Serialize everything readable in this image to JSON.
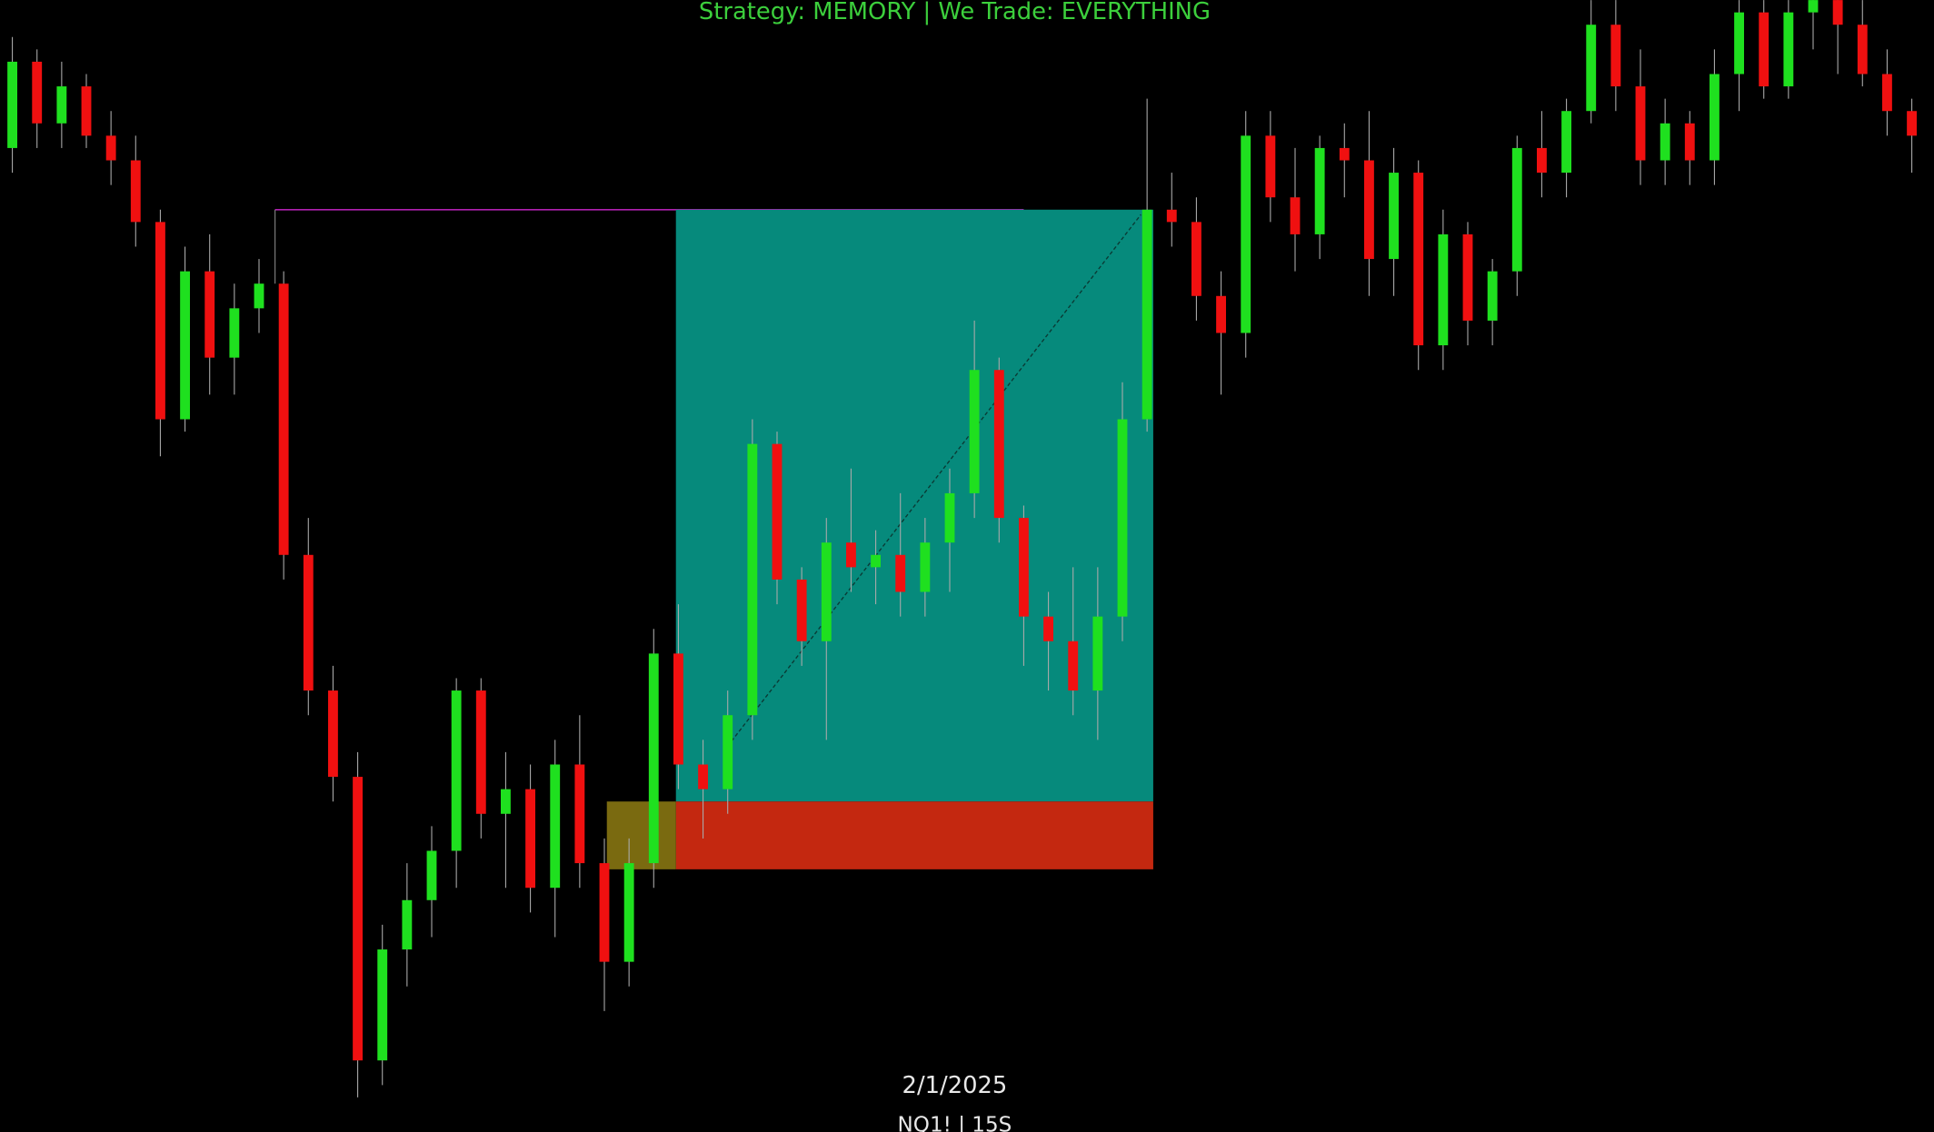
{
  "chart_data": {
    "type": "candlestick",
    "title": "Strategy: MEMORY  | We Trade: EVERYTHING",
    "date_label": "2/1/2025",
    "symbol": "NQ1! | 15S",
    "ylim": [
      0,
      92
    ],
    "up_color": "#1fe01f",
    "down_color": "#f01010",
    "open": [
      80,
      87,
      82,
      85,
      81,
      79,
      74,
      58,
      70,
      63,
      67,
      69,
      47,
      36,
      29,
      6,
      15,
      19,
      23,
      36,
      26,
      28,
      20,
      30,
      22,
      14,
      22,
      39,
      30,
      28,
      34,
      56,
      45,
      40,
      48,
      46,
      47,
      44,
      48,
      52,
      62,
      50,
      42,
      40,
      36,
      42,
      58,
      75,
      74,
      68,
      65,
      81,
      76,
      73,
      80,
      79,
      71,
      78,
      64,
      73,
      66,
      70,
      80,
      78,
      83,
      90,
      85,
      79,
      82,
      79,
      86,
      91,
      85,
      91,
      92,
      90,
      86,
      83
    ],
    "high": [
      89,
      88,
      87,
      86,
      83,
      81,
      75,
      72,
      73,
      69,
      71,
      70,
      50,
      38,
      31,
      17,
      22,
      25,
      37,
      37,
      31,
      30,
      32,
      34,
      24,
      24,
      41,
      43,
      32,
      36,
      58,
      57,
      46,
      50,
      54,
      49,
      52,
      50,
      54,
      66,
      63,
      51,
      44,
      46,
      46,
      61,
      84,
      78,
      76,
      70,
      83,
      83,
      80,
      81,
      82,
      83,
      80,
      79,
      75,
      74,
      71,
      81,
      83,
      84,
      92,
      92,
      88,
      84,
      83,
      88,
      92,
      92,
      92,
      92,
      92,
      92,
      88,
      84
    ],
    "low": [
      78,
      80,
      80,
      80,
      77,
      72,
      55,
      57,
      60,
      60,
      65,
      45,
      34,
      27,
      3,
      4,
      12,
      16,
      20,
      24,
      20,
      18,
      16,
      20,
      10,
      12,
      20,
      28,
      24,
      26,
      32,
      43,
      38,
      32,
      44,
      43,
      42,
      42,
      44,
      50,
      48,
      38,
      36,
      34,
      32,
      40,
      57,
      72,
      66,
      60,
      63,
      74,
      70,
      71,
      76,
      68,
      68,
      62,
      62,
      64,
      64,
      68,
      76,
      76,
      82,
      83,
      77,
      77,
      77,
      77,
      83,
      84,
      84,
      88,
      86,
      85,
      81,
      78
    ],
    "close": [
      87,
      82,
      85,
      81,
      79,
      74,
      58,
      70,
      63,
      67,
      69,
      47,
      36,
      29,
      6,
      15,
      19,
      23,
      36,
      26,
      28,
      20,
      30,
      22,
      14,
      22,
      39,
      30,
      28,
      34,
      56,
      45,
      40,
      48,
      46,
      47,
      44,
      48,
      52,
      62,
      50,
      42,
      40,
      36,
      42,
      58,
      75,
      74,
      68,
      65,
      81,
      76,
      73,
      80,
      79,
      71,
      78,
      64,
      73,
      66,
      70,
      80,
      78,
      83,
      90,
      85,
      79,
      82,
      79,
      86,
      91,
      85,
      91,
      92,
      90,
      86,
      83,
      81
    ],
    "position_tool": {
      "target": 75,
      "entry": 27,
      "stop": 21.5,
      "profit_color": "#068a7c",
      "loss_color": "#c42810",
      "entry_color": "#7a6a10",
      "level_color": "#b020b0"
    }
  }
}
